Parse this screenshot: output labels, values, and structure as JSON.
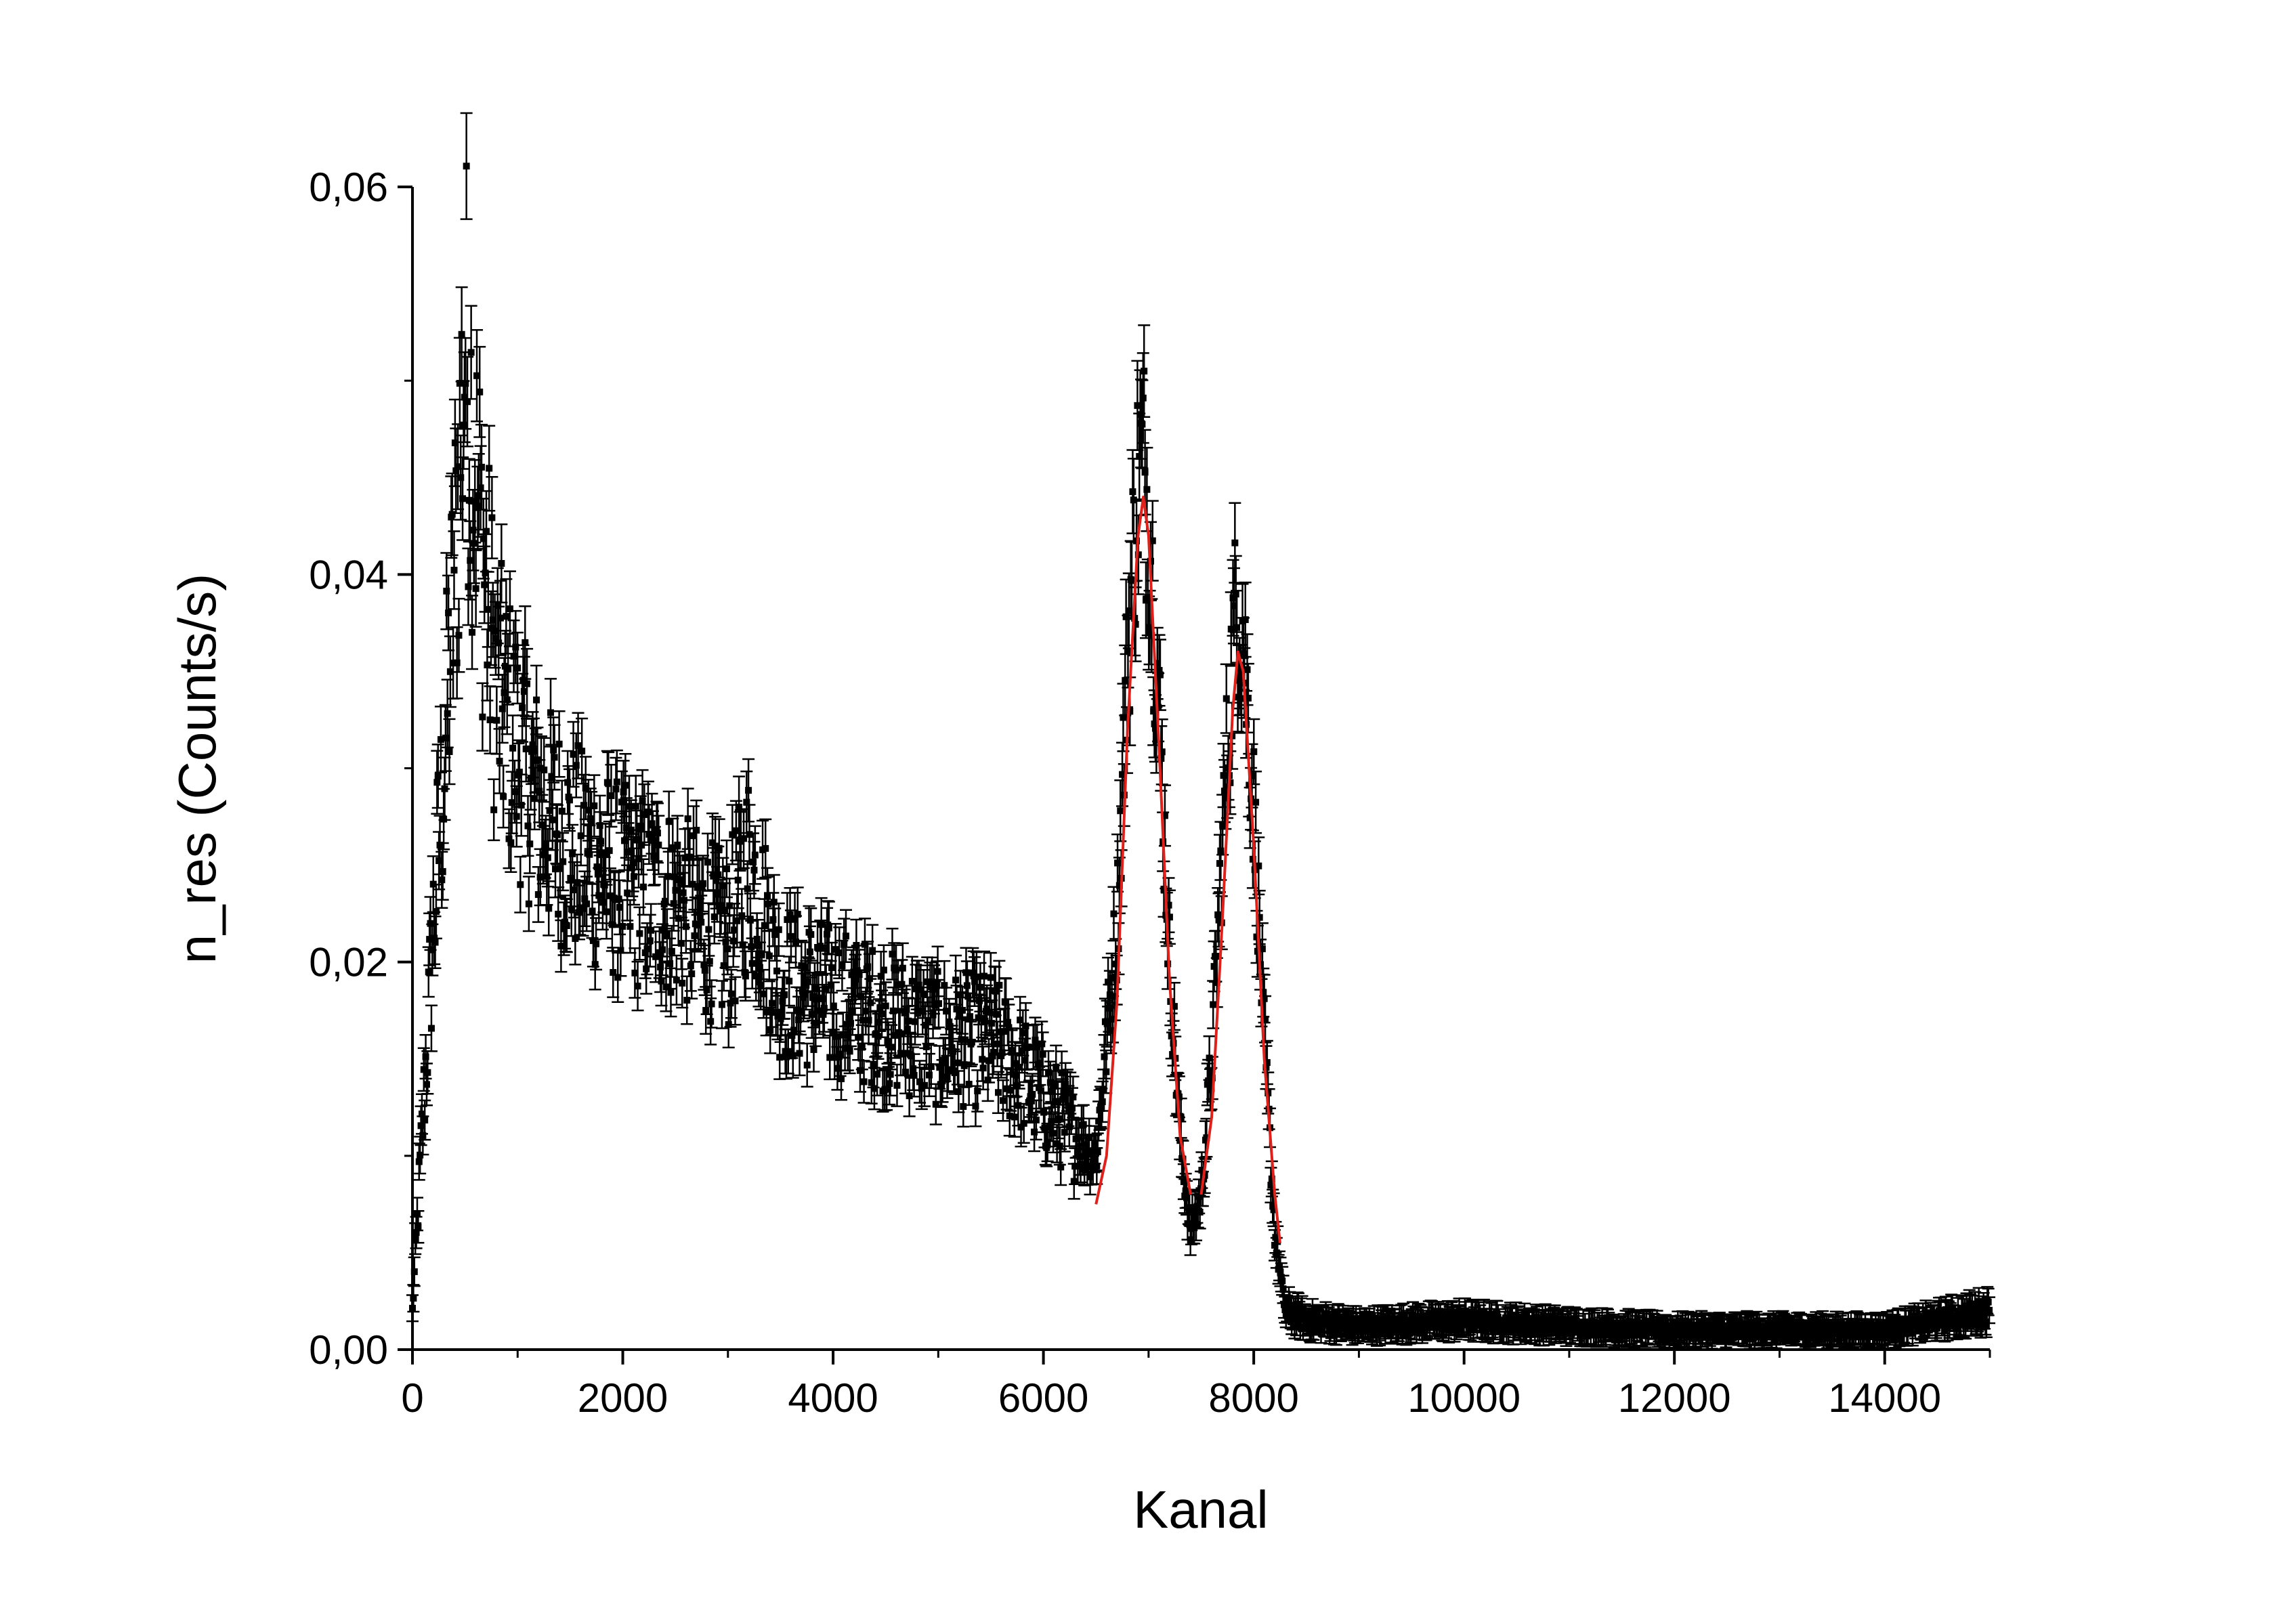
{
  "chart_data": {
    "type": "scatter",
    "title": "",
    "xlabel": "Kanal",
    "ylabel": "n_res (Counts/s)",
    "xlim": [
      0,
      15000
    ],
    "ylim": [
      0,
      0.06
    ],
    "x_ticks": [
      0,
      2000,
      4000,
      6000,
      8000,
      10000,
      12000,
      14000
    ],
    "x_tick_labels": [
      "0",
      "2000",
      "4000",
      "6000",
      "8000",
      "10000",
      "12000",
      "14000"
    ],
    "y_ticks": [
      0,
      0.02,
      0.04,
      0.06
    ],
    "y_tick_labels": [
      "0,00",
      "0,02",
      "0,04",
      "0,06"
    ],
    "grid": false,
    "legend": false,
    "colors": {
      "data": "#000000",
      "fit": "#e0201a"
    },
    "series": [
      {
        "kind": "data_with_error_bars",
        "x": [
          0,
          100,
          200,
          300,
          400,
          500,
          600,
          800,
          1000,
          1200,
          1500,
          2000,
          2500,
          3000,
          3200,
          3500,
          4000,
          4500,
          5000,
          5500,
          6000,
          6300,
          6500,
          6700,
          6800,
          6900,
          6950,
          7000,
          7100,
          7200,
          7300,
          7400,
          7500,
          7600,
          7700,
          7800,
          7850,
          7900,
          8000,
          8100,
          8200,
          8300,
          8500,
          9000,
          10000,
          11000,
          12000,
          13000,
          14000,
          14500,
          15000
        ],
        "y": [
          0.002,
          0.012,
          0.022,
          0.03,
          0.04,
          0.052,
          0.045,
          0.034,
          0.031,
          0.028,
          0.026,
          0.024,
          0.023,
          0.021,
          0.025,
          0.019,
          0.018,
          0.017,
          0.016,
          0.016,
          0.013,
          0.011,
          0.01,
          0.022,
          0.036,
          0.045,
          0.046,
          0.043,
          0.033,
          0.02,
          0.011,
          0.006,
          0.008,
          0.015,
          0.026,
          0.036,
          0.039,
          0.037,
          0.028,
          0.016,
          0.006,
          0.002,
          0.0015,
          0.0012,
          0.0015,
          0.0012,
          0.001,
          0.001,
          0.001,
          0.0015,
          0.002
        ]
      },
      {
        "kind": "fit",
        "x": [
          6500,
          6600,
          6700,
          6800,
          6900,
          6950,
          7000,
          7100,
          7200,
          7300,
          7400
        ],
        "y": [
          0.0075,
          0.01,
          0.018,
          0.032,
          0.042,
          0.044,
          0.042,
          0.031,
          0.019,
          0.011,
          0.008
        ]
      },
      {
        "kind": "fit",
        "x": [
          7500,
          7600,
          7700,
          7800,
          7850,
          7900,
          8000,
          8100,
          8200,
          8250
        ],
        "y": [
          0.008,
          0.012,
          0.022,
          0.033,
          0.036,
          0.035,
          0.026,
          0.015,
          0.008,
          0.0055
        ]
      }
    ]
  }
}
